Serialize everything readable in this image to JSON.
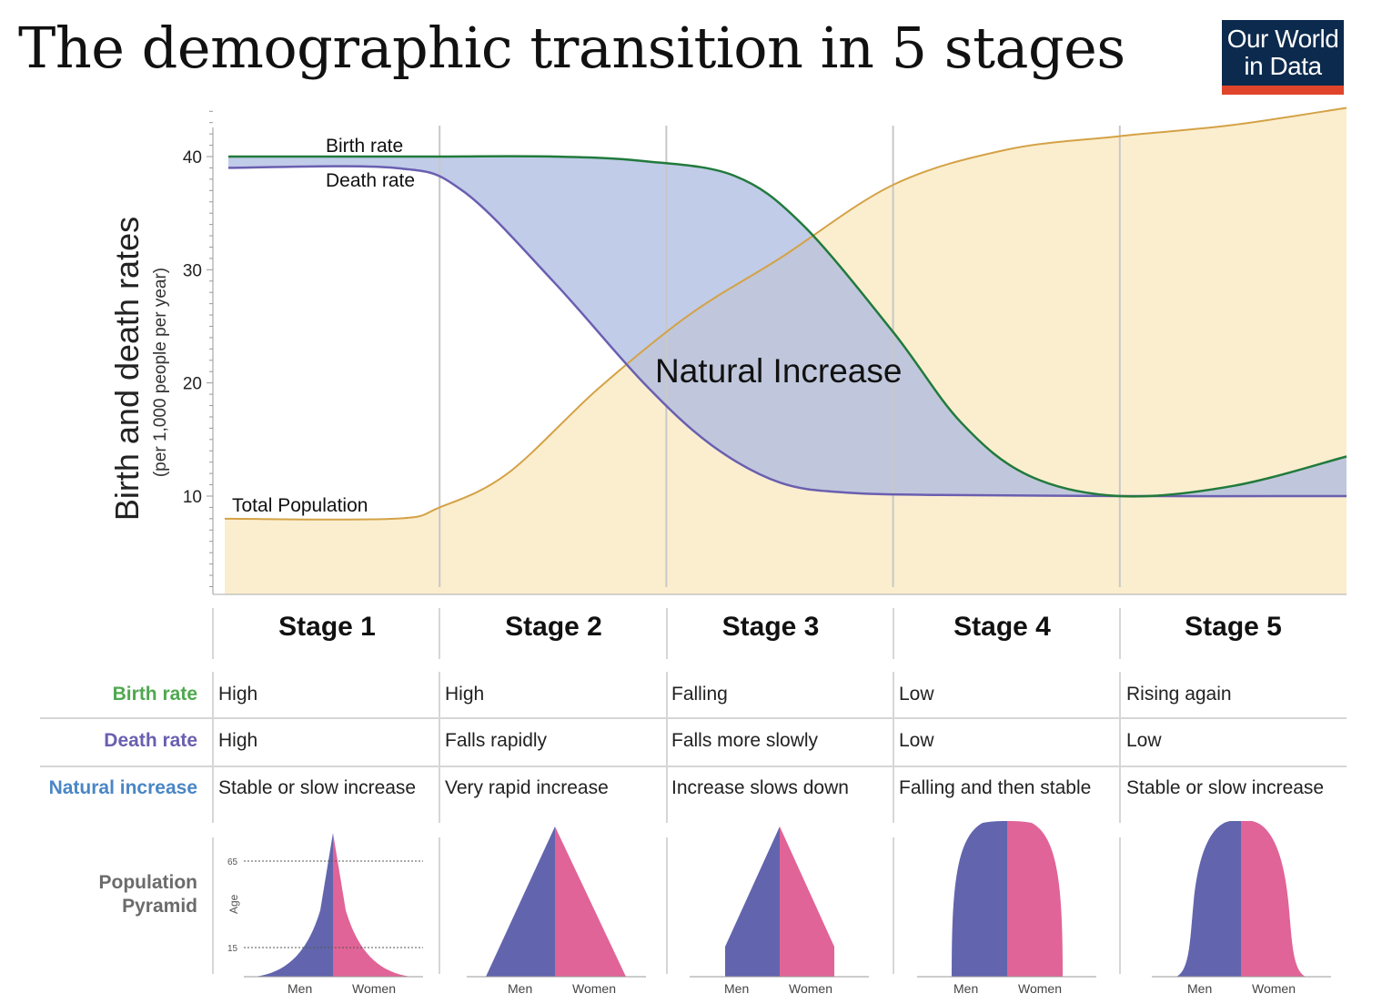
{
  "title": "The demographic transition in 5 stages",
  "logo": {
    "line1": "Our World",
    "line2": "in Data",
    "bg_color": "#0c2a4d",
    "accent_color": "#e0452b"
  },
  "chart_data": {
    "type": "line",
    "ylabel": "Birth and death rates",
    "ylabel_sub": "(per 1,000 people per year)",
    "yticks": [
      10,
      20,
      30,
      40
    ],
    "ylim": [
      2,
      44
    ],
    "xlim": [
      0,
      5
    ],
    "stages": [
      "Stage 1",
      "Stage 2",
      "Stage 3",
      "Stage 4",
      "Stage 5"
    ],
    "series": [
      {
        "name": "Birth rate",
        "color": "#217a3c",
        "x": [
          0,
          0.5,
          0.95,
          1.5,
          1.9,
          2.3,
          2.6,
          3.0,
          3.3,
          3.6,
          4.0,
          4.5,
          5.0
        ],
        "y": [
          40,
          40,
          40,
          40,
          39.6,
          38.3,
          34.0,
          24.5,
          16.5,
          11.8,
          10.0,
          10.9,
          13.5
        ]
      },
      {
        "name": "Death rate",
        "color": "#6a5fb0",
        "x": [
          0,
          0.8,
          1.1,
          1.5,
          1.9,
          2.2,
          2.5,
          2.8,
          3.2,
          4.0,
          5.0
        ],
        "y": [
          39,
          39,
          37,
          29,
          20,
          14.5,
          11.2,
          10.3,
          10.1,
          10.0,
          10.0
        ]
      },
      {
        "name": "Total Population",
        "color": "#d4a246",
        "x": [
          0,
          0.8,
          1.0,
          1.3,
          1.7,
          2.1,
          2.5,
          3.0,
          3.5,
          4.0,
          4.5,
          5.0
        ],
        "y": [
          8,
          8,
          9,
          12,
          19.5,
          26,
          31,
          37.5,
          40.6,
          41.8,
          42.8,
          44.3
        ]
      }
    ],
    "annotation": "Natural Increase",
    "shading": {
      "natural_increase_fill": "#a9b9e0",
      "population_fill": "#fbeecf"
    }
  },
  "table": {
    "rows": [
      {
        "label": "Birth rate",
        "color": "#4fa84f",
        "values": [
          "High",
          "High",
          "Falling",
          "Low",
          "Rising again"
        ]
      },
      {
        "label": "Death rate",
        "color": "#6a5fb0",
        "values": [
          "High",
          "Falls rapidly",
          "Falls more slowly",
          "Low",
          "Low"
        ]
      },
      {
        "label": "Natural increase",
        "color": "#4a86c5",
        "values": [
          "Stable or slow increase",
          "Very rapid increase",
          "Increase slows down",
          "Falling and then stable",
          "Stable or slow increase"
        ]
      }
    ]
  },
  "pyramids": {
    "label_line1": "Population",
    "label_line2": "Pyramid",
    "age_label": "Age",
    "age_ticks": [
      "65",
      "15"
    ],
    "men_label": "Men",
    "women_label": "Women",
    "men_color": "#6265ad",
    "women_color": "#e06497"
  }
}
